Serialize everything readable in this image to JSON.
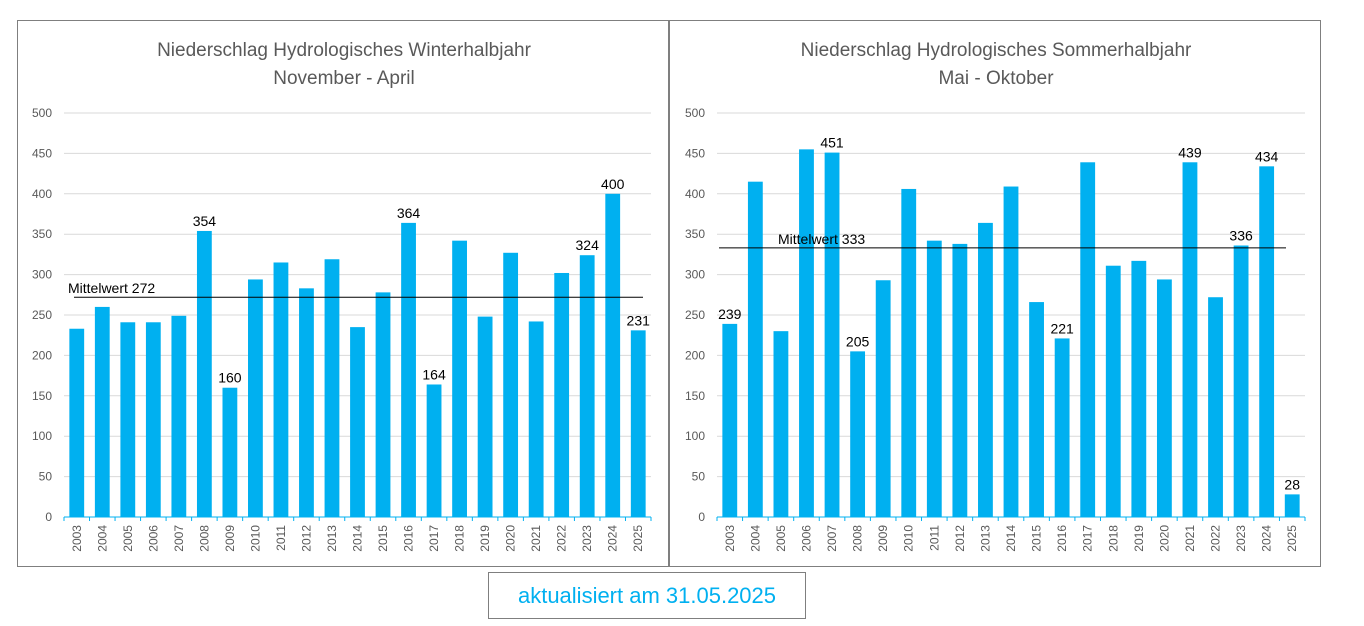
{
  "chart_data": [
    {
      "type": "bar",
      "title": "Niederschlag Hydrologisches Winterhalbjahr",
      "subtitle": "November - April",
      "ylim": [
        0,
        500
      ],
      "yticks": [
        0,
        50,
        100,
        150,
        200,
        250,
        300,
        350,
        400,
        450,
        500
      ],
      "grid": true,
      "categories": [
        "2003",
        "2004",
        "2005",
        "2006",
        "2007",
        "2008",
        "2009",
        "2010",
        "2011",
        "2012",
        "2013",
        "2014",
        "2015",
        "2016",
        "2017",
        "2018",
        "2019",
        "2020",
        "2021",
        "2022",
        "2023",
        "2024",
        "2025"
      ],
      "values": [
        233,
        260,
        241,
        241,
        249,
        354,
        160,
        294,
        315,
        283,
        319,
        235,
        278,
        364,
        164,
        342,
        248,
        327,
        242,
        302,
        324,
        400,
        231
      ],
      "data_labels": {
        "2008": "354",
        "2009": "160",
        "2016": "364",
        "2017": "164",
        "2023": "324",
        "2024": "400",
        "2025": "231"
      },
      "mean_line": {
        "value": 272,
        "label": "Mittelwert 272"
      },
      "bar_color": "#00b0f0"
    },
    {
      "type": "bar",
      "title": "Niederschlag Hydrologisches Sommerhalbjahr",
      "subtitle": "Mai - Oktober",
      "ylim": [
        0,
        500
      ],
      "yticks": [
        0,
        50,
        100,
        150,
        200,
        250,
        300,
        350,
        400,
        450,
        500
      ],
      "grid": true,
      "categories": [
        "2003",
        "2004",
        "2005",
        "2006",
        "2007",
        "2008",
        "2009",
        "2010",
        "2011",
        "2012",
        "2013",
        "2014",
        "2015",
        "2016",
        "2017",
        "2018",
        "2019",
        "2020",
        "2021",
        "2022",
        "2023",
        "2024",
        "2025"
      ],
      "values": [
        239,
        415,
        230,
        455,
        451,
        205,
        293,
        406,
        342,
        338,
        364,
        409,
        266,
        221,
        439,
        311,
        317,
        294,
        439,
        272,
        336,
        434,
        28
      ],
      "data_labels": {
        "2003": "239",
        "2007": "451",
        "2008": "205",
        "2016": "221",
        "2021": "439",
        "2023": "336",
        "2024": "434",
        "2025": "28"
      },
      "mean_line": {
        "value": 333,
        "label": "Mittelwert 333"
      },
      "bar_color": "#00b0f0"
    }
  ],
  "footer": {
    "text": "aktualisiert am 31.05.2025"
  }
}
